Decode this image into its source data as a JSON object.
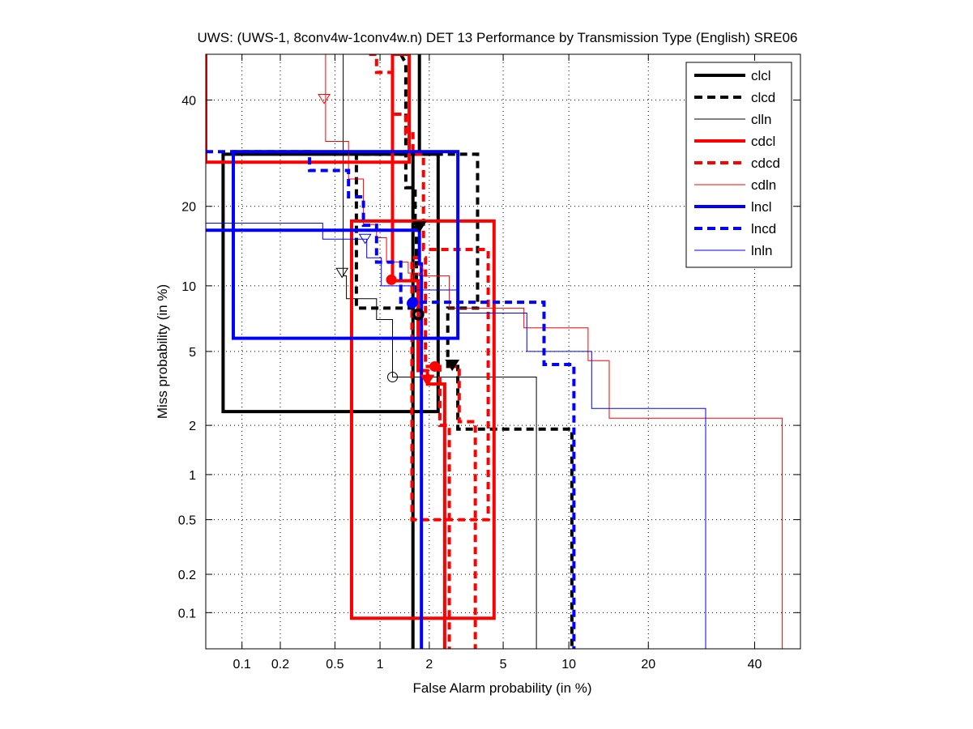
{
  "chart_data": {
    "type": "line",
    "subtype": "DET (probit-scaled axes)",
    "title": "UWS: (UWS-1, 8conv4w-1conv4w.n) DET 13 Performance by Transmission Type (English) SRE06",
    "xlabel": "False Alarm probability (in %)",
    "ylabel": "Miss probability (in %)",
    "xlim": [
      0.05,
      50
    ],
    "ylim": [
      0.05,
      50
    ],
    "x_scale": "normal-deviate",
    "y_scale": "normal-deviate",
    "x_ticks": [
      0.1,
      0.2,
      0.5,
      1,
      2,
      5,
      10,
      20,
      40
    ],
    "x_tick_labels": [
      "0.1",
      "0.2",
      "0.5",
      "1",
      "2",
      "5",
      "10",
      "20",
      "40"
    ],
    "y_ticks": [
      0.1,
      0.2,
      0.5,
      1,
      2,
      5,
      10,
      20,
      40
    ],
    "y_tick_labels": [
      "0.1",
      "0.2",
      "0.5",
      "1",
      "2",
      "5",
      "10",
      "20",
      "40"
    ],
    "grid": true,
    "legend_position": "top-right",
    "series": [
      {
        "name": "clcl",
        "color": "#000000",
        "style": "solid",
        "weight": "thick",
        "points": [
          [
            1.75,
            50
          ],
          [
            1.75,
            29
          ],
          [
            0.07,
            29
          ],
          [
            0.07,
            2.4
          ],
          [
            2.25,
            2.4
          ],
          [
            2.25,
            29
          ],
          [
            1.6,
            29
          ],
          [
            1.6,
            0.05
          ]
        ],
        "marker": {
          "type": "down-triangle-filled",
          "x": 1.75,
          "y": 16.8
        },
        "marker2": {
          "type": "circle-thick",
          "x": 1.72,
          "y": 7.5
        }
      },
      {
        "name": "clcd",
        "color": "#000000",
        "style": "dashed",
        "weight": "thick",
        "points": [
          [
            1.35,
            50
          ],
          [
            1.45,
            48
          ],
          [
            1.45,
            23
          ],
          [
            1.65,
            23
          ],
          [
            1.65,
            17
          ],
          [
            1.68,
            17
          ],
          [
            1.68,
            8
          ],
          [
            0.7,
            8
          ],
          [
            0.7,
            29
          ],
          [
            3.7,
            29
          ],
          [
            3.7,
            8
          ],
          [
            2.55,
            8
          ],
          [
            2.55,
            4.2
          ],
          [
            2.9,
            4.2
          ],
          [
            2.9,
            1.9
          ],
          [
            10.3,
            1.9
          ],
          [
            10.3,
            0.05
          ]
        ],
        "marker": {
          "type": "down-triangle-filled",
          "x": 2.7,
          "y": 4.2
        }
      },
      {
        "name": "clln",
        "color": "#000000",
        "style": "solid",
        "weight": "thin",
        "points": [
          [
            0.57,
            50
          ],
          [
            0.57,
            11
          ],
          [
            0.6,
            11
          ],
          [
            0.6,
            8.8
          ],
          [
            0.95,
            8.8
          ],
          [
            0.95,
            7.1
          ],
          [
            1.2,
            7.1
          ],
          [
            1.2,
            3.7
          ],
          [
            7.2,
            3.7
          ],
          [
            7.2,
            0.05
          ]
        ],
        "marker": {
          "type": "down-triangle-open",
          "x": 0.56,
          "y": 11.2
        },
        "marker2": {
          "type": "circle-open",
          "x": 1.2,
          "y": 3.7
        }
      },
      {
        "name": "cdcl",
        "color": "#ff0000",
        "style": "solid",
        "weight": "thick",
        "points": [
          [
            0.05,
            50
          ],
          [
            0.05,
            27.5
          ],
          [
            1.52,
            27.5
          ],
          [
            1.52,
            50
          ],
          [
            1.2,
            50
          ],
          [
            1.2,
            10.5
          ],
          [
            1.72,
            10.5
          ],
          [
            1.72,
            4.0
          ],
          [
            1.95,
            4.0
          ],
          [
            1.95,
            3.4
          ],
          [
            2.45,
            3.4
          ],
          [
            2.45,
            0.05
          ]
        ],
        "box": [
          [
            0.65,
            0.09
          ],
          [
            4.5,
            17.8
          ]
        ],
        "marker": {
          "type": "circle-filled",
          "x": 1.18,
          "y": 10.6
        },
        "marker2": {
          "type": "down-triangle-filled",
          "x": 1.95,
          "y": 3.5
        }
      },
      {
        "name": "cdcd",
        "color": "#ff0000",
        "style": "dashed",
        "weight": "thick",
        "points": [
          [
            0.85,
            50
          ],
          [
            0.95,
            50
          ],
          [
            0.95,
            46
          ],
          [
            1.2,
            46
          ],
          [
            1.2,
            37
          ],
          [
            1.45,
            37
          ],
          [
            1.45,
            33
          ],
          [
            1.6,
            33
          ],
          [
            1.6,
            29
          ],
          [
            1.85,
            29
          ],
          [
            1.85,
            14
          ],
          [
            4.2,
            14
          ],
          [
            4.2,
            0.5
          ],
          [
            1.58,
            0.5
          ],
          [
            1.58,
            13
          ],
          [
            1.9,
            13
          ],
          [
            1.9,
            4.2
          ],
          [
            2.3,
            4.2
          ],
          [
            2.3,
            2.0
          ],
          [
            2.6,
            2.0
          ],
          [
            2.6,
            0.05
          ]
        ],
        "extra_segment": [
          [
            2.6,
            4.2
          ],
          [
            2.95,
            4.2
          ],
          [
            2.95,
            2.1
          ],
          [
            3.6,
            2.1
          ],
          [
            3.6,
            0.05
          ]
        ],
        "marker": {
          "type": "circle-filled",
          "x": 2.15,
          "y": 4.2
        }
      },
      {
        "name": "cdln",
        "color": "#ff0000",
        "style": "solid",
        "weight": "thin",
        "points": [
          [
            0.43,
            50
          ],
          [
            0.43,
            31.5
          ],
          [
            0.62,
            31.5
          ],
          [
            0.62,
            24.5
          ],
          [
            0.78,
            24.5
          ],
          [
            0.78,
            17.3
          ],
          [
            0.95,
            17.3
          ],
          [
            0.95,
            15.5
          ],
          [
            1.1,
            15.5
          ],
          [
            1.1,
            12.5
          ],
          [
            1.5,
            12.5
          ],
          [
            1.5,
            11.3
          ],
          [
            1.75,
            11.3
          ],
          [
            1.75,
            11.0
          ],
          [
            2.6,
            11.0
          ],
          [
            2.6,
            8.0
          ],
          [
            6.3,
            8.0
          ],
          [
            6.3,
            6.5
          ],
          [
            12.0,
            6.5
          ],
          [
            12.0,
            4.5
          ],
          [
            14.5,
            4.5
          ],
          [
            14.5,
            2.2
          ],
          [
            46,
            2.2
          ],
          [
            46,
            0.05
          ]
        ],
        "marker": {
          "type": "down-triangle-open",
          "x": 0.42,
          "y": 40
        },
        "marker2": {
          "type": "circle-open",
          "x": 1.72,
          "y": 11.6
        }
      },
      {
        "name": "lncl",
        "color": "#0000ff",
        "style": "solid",
        "weight": "thick",
        "points": [
          [
            0.05,
            16.5
          ],
          [
            1.75,
            16.5
          ],
          [
            1.75,
            12.3
          ],
          [
            1.8,
            12.3
          ],
          [
            1.8,
            0.05
          ]
        ],
        "box": [
          [
            0.085,
            5.8
          ],
          [
            2.9,
            29.5
          ]
        ],
        "marker": {
          "type": "circle-filled",
          "x": 1.6,
          "y": 8.5
        }
      },
      {
        "name": "lncd",
        "color": "#0000ff",
        "style": "dashed",
        "weight": "thick",
        "points": [
          [
            0.05,
            29.5
          ],
          [
            0.33,
            29.5
          ],
          [
            0.33,
            26
          ],
          [
            0.62,
            26
          ],
          [
            0.62,
            21.5
          ],
          [
            0.78,
            21.5
          ],
          [
            0.78,
            17.2
          ],
          [
            0.95,
            17.2
          ],
          [
            0.95,
            12.5
          ],
          [
            1.35,
            12.5
          ],
          [
            1.35,
            8.5
          ],
          [
            7.8,
            8.5
          ],
          [
            7.8,
            4.3
          ],
          [
            10.5,
            4.3
          ],
          [
            10.5,
            0.05
          ]
        ],
        "marker": {
          "type": "circle-filled",
          "x": 1.58,
          "y": 8.4
        }
      },
      {
        "name": "lnln",
        "color": "#0000ff",
        "style": "solid",
        "weight": "thin",
        "points": [
          [
            0.05,
            17.5
          ],
          [
            0.41,
            17.5
          ],
          [
            0.41,
            15.3
          ],
          [
            0.82,
            15.3
          ],
          [
            0.82,
            13.0
          ],
          [
            1.02,
            13.0
          ],
          [
            1.02,
            10.0
          ],
          [
            1.65,
            10.0
          ],
          [
            1.65,
            9.6
          ],
          [
            2.9,
            9.6
          ],
          [
            2.9,
            7.6
          ],
          [
            6.5,
            7.6
          ],
          [
            6.5,
            5.0
          ],
          [
            12.4,
            5.0
          ],
          [
            12.4,
            2.5
          ],
          [
            30,
            2.5
          ],
          [
            30,
            0.05
          ]
        ],
        "marker": {
          "type": "down-triangle-open",
          "x": 0.8,
          "y": 15.2
        }
      }
    ]
  }
}
